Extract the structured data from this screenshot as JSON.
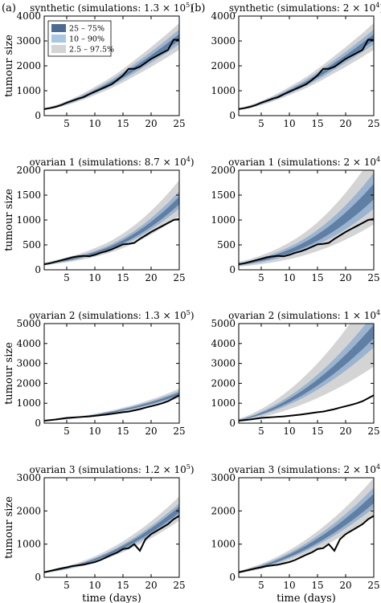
{
  "figure": {
    "panel_labels": [
      "(a)",
      "(b)"
    ],
    "xlabel": "time (days)",
    "ylabel": "tumour size"
  },
  "legend": [
    {
      "label": "25 – 75%",
      "color": "#4a6b93"
    },
    {
      "label": "10 – 90%",
      "color": "#a9c6e3"
    },
    {
      "label": "2.5 – 97.5%",
      "color": "#d4d4d4"
    }
  ],
  "colors": {
    "band_outer": "#d4d4d4",
    "band_mid": "#9bb4cf",
    "band_inner": "#5f7fa4",
    "observed": "#000000"
  },
  "chart_data": [
    {
      "type": "area",
      "title": "synthetic (simulations: 1.3 × 10",
      "title_sup": "5",
      "title_end": ")",
      "ylim": [
        0,
        4000
      ],
      "yticks": [
        0,
        1000,
        2000,
        3000,
        4000
      ],
      "xlim": [
        1,
        25
      ],
      "xticks": [
        5,
        10,
        15,
        20,
        25
      ],
      "observed": {
        "x": [
          1,
          2,
          3,
          4,
          5,
          6,
          7,
          8,
          9,
          10,
          11,
          12,
          13,
          14,
          15,
          16,
          17,
          18,
          19,
          20,
          21,
          22,
          23,
          24,
          25
        ],
        "y": [
          260,
          300,
          350,
          420,
          520,
          600,
          680,
          740,
          860,
          960,
          1060,
          1160,
          1260,
          1430,
          1620,
          1880,
          1880,
          1960,
          2120,
          2280,
          2400,
          2520,
          2640,
          3050,
          3050
        ]
      },
      "median": [
        260,
        305,
        360,
        425,
        500,
        580,
        670,
        770,
        870,
        980,
        1090,
        1200,
        1320,
        1450,
        1590,
        1730,
        1880,
        2030,
        2180,
        2330,
        2490,
        2650,
        2810,
        2980,
        3150
      ],
      "bands": [
        [
          0.04,
          0.04
        ],
        [
          0.09,
          0.1
        ],
        [
          0.16,
          0.18
        ]
      ]
    },
    {
      "type": "area",
      "title": "synthetic (simulations: 2 × 10",
      "title_sup": "4",
      "title_end": ")",
      "ylim": [
        0,
        4000
      ],
      "yticks": [
        0,
        1000,
        2000,
        3000,
        4000
      ],
      "xlim": [
        1,
        25
      ],
      "xticks": [
        5,
        10,
        15,
        20,
        25
      ],
      "observed": {
        "x": [
          1,
          2,
          3,
          4,
          5,
          6,
          7,
          8,
          9,
          10,
          11,
          12,
          13,
          14,
          15,
          16,
          17,
          18,
          19,
          20,
          21,
          22,
          23,
          24,
          25
        ],
        "y": [
          260,
          300,
          350,
          420,
          520,
          600,
          680,
          740,
          860,
          960,
          1060,
          1160,
          1260,
          1430,
          1620,
          1880,
          1880,
          1960,
          2120,
          2280,
          2400,
          2520,
          2640,
          3050,
          3050
        ]
      },
      "median": [
        260,
        305,
        360,
        425,
        500,
        580,
        670,
        770,
        870,
        980,
        1090,
        1200,
        1320,
        1450,
        1590,
        1730,
        1880,
        2030,
        2180,
        2330,
        2490,
        2650,
        2810,
        2980,
        3150
      ],
      "bands": [
        [
          0.04,
          0.04
        ],
        [
          0.09,
          0.1
        ],
        [
          0.16,
          0.18
        ]
      ]
    },
    {
      "type": "area",
      "title": "ovarian 1 (simulations: 8.7 × 10",
      "title_sup": "4",
      "title_end": ")",
      "ylim": [
        0,
        2000
      ],
      "yticks": [
        0,
        500,
        1000,
        1500,
        2000
      ],
      "xlim": [
        1,
        25
      ],
      "xticks": [
        5,
        10,
        15,
        20,
        25
      ],
      "observed": {
        "x": [
          1,
          2,
          3,
          4,
          5,
          6,
          7,
          8,
          9,
          10,
          11,
          12,
          13,
          14,
          15,
          16,
          17,
          18,
          19,
          20,
          21,
          22,
          23,
          24,
          25
        ],
        "y": [
          110,
          130,
          160,
          190,
          220,
          250,
          270,
          280,
          270,
          300,
          340,
          370,
          410,
          460,
          510,
          520,
          540,
          620,
          690,
          760,
          820,
          880,
          940,
          1000,
          1020
        ]
      },
      "median": [
        110,
        130,
        150,
        170,
        190,
        215,
        240,
        270,
        300,
        335,
        370,
        410,
        455,
        505,
        560,
        620,
        685,
        755,
        830,
        910,
        995,
        1085,
        1180,
        1280,
        1385
      ],
      "bands": [
        [
          0.05,
          0.06
        ],
        [
          0.11,
          0.14
        ],
        [
          0.22,
          0.3
        ]
      ]
    },
    {
      "type": "area",
      "title": "ovarian 1 (simulations: 2 × 10",
      "title_sup": "4",
      "title_end": ")",
      "ylim": [
        0,
        2000
      ],
      "yticks": [
        0,
        500,
        1000,
        1500,
        2000
      ],
      "xlim": [
        1,
        25
      ],
      "xticks": [
        5,
        10,
        15,
        20,
        25
      ],
      "observed": {
        "x": [
          1,
          2,
          3,
          4,
          5,
          6,
          7,
          8,
          9,
          10,
          11,
          12,
          13,
          14,
          15,
          16,
          17,
          18,
          19,
          20,
          21,
          22,
          23,
          24,
          25
        ],
        "y": [
          110,
          130,
          160,
          190,
          220,
          250,
          270,
          280,
          270,
          300,
          340,
          370,
          410,
          460,
          510,
          520,
          540,
          620,
          690,
          760,
          820,
          880,
          940,
          1000,
          1020
        ]
      },
      "median": [
        110,
        125,
        145,
        170,
        195,
        225,
        255,
        290,
        330,
        370,
        415,
        465,
        520,
        580,
        645,
        715,
        790,
        870,
        955,
        1045,
        1140,
        1240,
        1345,
        1455,
        1570
      ],
      "bands": [
        [
          0.1,
          0.1
        ],
        [
          0.22,
          0.24
        ],
        [
          0.42,
          0.48
        ]
      ]
    },
    {
      "type": "area",
      "title": "ovarian 2 (simulations: 1.3 × 10",
      "title_sup": "5",
      "title_end": ")",
      "ylim": [
        0,
        5000
      ],
      "yticks": [
        0,
        1000,
        2000,
        3000,
        4000,
        5000
      ],
      "xlim": [
        1,
        25
      ],
      "xticks": [
        5,
        10,
        15,
        20,
        25
      ],
      "observed": {
        "x": [
          1,
          2,
          3,
          4,
          5,
          6,
          7,
          8,
          9,
          10,
          11,
          12,
          13,
          14,
          15,
          16,
          17,
          18,
          19,
          20,
          21,
          22,
          23,
          24,
          25
        ],
        "y": [
          120,
          150,
          180,
          220,
          260,
          280,
          300,
          320,
          340,
          370,
          400,
          430,
          470,
          510,
          550,
          580,
          640,
          700,
          780,
          850,
          920,
          1000,
          1100,
          1250,
          1400
        ]
      },
      "median": [
        120,
        140,
        165,
        190,
        220,
        250,
        285,
        320,
        360,
        400,
        445,
        495,
        545,
        600,
        660,
        720,
        785,
        855,
        930,
        1010,
        1090,
        1180,
        1270,
        1370,
        1470
      ],
      "bands": [
        [
          0.04,
          0.05
        ],
        [
          0.08,
          0.1
        ],
        [
          0.14,
          0.18
        ]
      ]
    },
    {
      "type": "area",
      "title": "ovarian 2 (simulations: 1 × 10",
      "title_sup": "4",
      "title_end": ")",
      "ylim": [
        0,
        5000
      ],
      "yticks": [
        0,
        1000,
        2000,
        3000,
        4000,
        5000
      ],
      "xlim": [
        1,
        25
      ],
      "xticks": [
        5,
        10,
        15,
        20,
        25
      ],
      "observed": {
        "x": [
          1,
          2,
          3,
          4,
          5,
          6,
          7,
          8,
          9,
          10,
          11,
          12,
          13,
          14,
          15,
          16,
          17,
          18,
          19,
          20,
          21,
          22,
          23,
          24,
          25
        ],
        "y": [
          120,
          150,
          180,
          220,
          260,
          280,
          300,
          320,
          340,
          370,
          400,
          430,
          470,
          510,
          550,
          580,
          640,
          700,
          780,
          850,
          920,
          1000,
          1100,
          1250,
          1400
        ]
      },
      "median": [
        150,
        210,
        290,
        380,
        480,
        590,
        710,
        840,
        980,
        1130,
        1290,
        1460,
        1640,
        1830,
        2030,
        2240,
        2460,
        2690,
        2930,
        3180,
        3440,
        3710,
        3990,
        4280,
        4580
      ],
      "bands": [
        [
          0.07,
          0.08
        ],
        [
          0.17,
          0.2
        ],
        [
          0.38,
          0.48
        ]
      ]
    },
    {
      "type": "area",
      "title": "ovarian 3 (simulations: 1.2 × 10",
      "title_sup": "5",
      "title_end": ")",
      "ylim": [
        0,
        3000
      ],
      "yticks": [
        0,
        1000,
        2000,
        3000
      ],
      "xlim": [
        1,
        25
      ],
      "xticks": [
        5,
        10,
        15,
        20,
        25
      ],
      "observed": {
        "x": [
          1,
          2,
          3,
          4,
          5,
          6,
          7,
          8,
          9,
          10,
          11,
          12,
          13,
          14,
          15,
          16,
          17,
          18,
          19,
          20,
          21,
          22,
          23,
          24,
          25
        ],
        "y": [
          150,
          190,
          230,
          270,
          300,
          340,
          360,
          380,
          420,
          460,
          520,
          600,
          680,
          750,
          850,
          880,
          1000,
          800,
          1150,
          1300,
          1400,
          1500,
          1600,
          1750,
          1850
        ]
      },
      "median": [
        150,
        175,
        205,
        240,
        280,
        320,
        365,
        415,
        470,
        530,
        595,
        665,
        740,
        820,
        905,
        995,
        1090,
        1190,
        1295,
        1405,
        1520,
        1640,
        1765,
        1895,
        2030
      ],
      "bands": [
        [
          0.04,
          0.05
        ],
        [
          0.09,
          0.1
        ],
        [
          0.16,
          0.2
        ]
      ]
    },
    {
      "type": "area",
      "title": "ovarian 3 (simulations: 2 × 10",
      "title_sup": "4",
      "title_end": ")",
      "ylim": [
        0,
        3000
      ],
      "yticks": [
        0,
        1000,
        2000,
        3000
      ],
      "xlim": [
        1,
        25
      ],
      "xticks": [
        5,
        10,
        15,
        20,
        25
      ],
      "observed": {
        "x": [
          1,
          2,
          3,
          4,
          5,
          6,
          7,
          8,
          9,
          10,
          11,
          12,
          13,
          14,
          15,
          16,
          17,
          18,
          19,
          20,
          21,
          22,
          23,
          24,
          25
        ],
        "y": [
          150,
          190,
          230,
          270,
          300,
          340,
          360,
          380,
          420,
          460,
          520,
          600,
          680,
          750,
          850,
          880,
          1000,
          800,
          1150,
          1300,
          1400,
          1500,
          1600,
          1750,
          1850
        ]
      },
      "median": [
        155,
        190,
        230,
        275,
        325,
        380,
        440,
        505,
        575,
        650,
        730,
        815,
        905,
        1000,
        1100,
        1205,
        1315,
        1430,
        1550,
        1675,
        1805,
        1940,
        2080,
        2225,
        2375
      ],
      "bands": [
        [
          0.06,
          0.06
        ],
        [
          0.12,
          0.14
        ],
        [
          0.22,
          0.26
        ]
      ]
    }
  ]
}
